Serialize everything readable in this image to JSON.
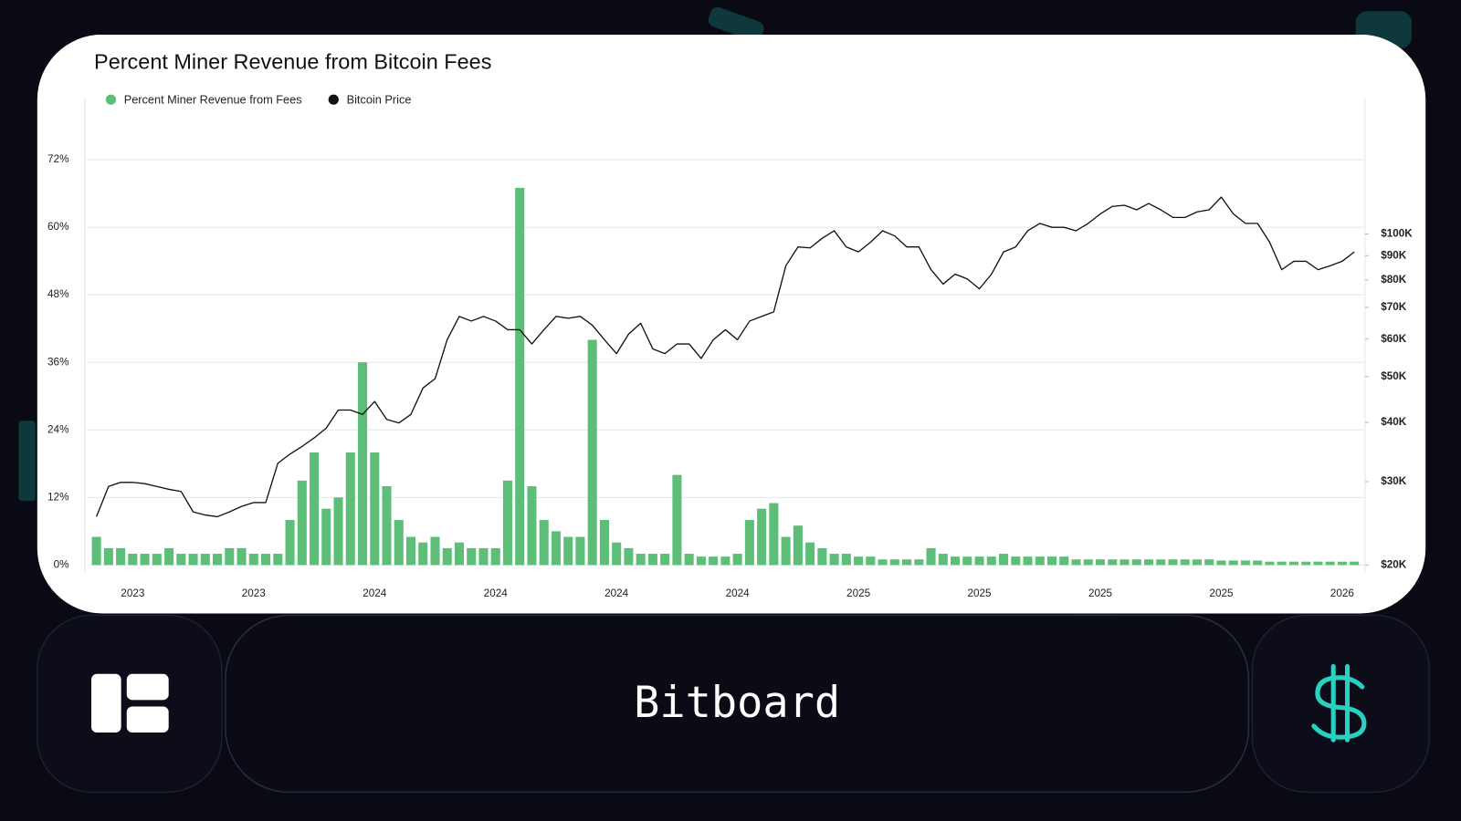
{
  "chart_data": {
    "type": "bar",
    "title": "Percent Miner Revenue from Bitcoin Fees",
    "categories": [
      null,
      null,
      null,
      "2023",
      null,
      null,
      null,
      null,
      null,
      null,
      null,
      null,
      null,
      "2023",
      null,
      null,
      null,
      null,
      null,
      null,
      null,
      null,
      null,
      "2024",
      null,
      null,
      null,
      null,
      null,
      null,
      null,
      null,
      null,
      "2024",
      null,
      null,
      null,
      null,
      null,
      null,
      null,
      null,
      null,
      "2024",
      null,
      null,
      null,
      null,
      null,
      null,
      null,
      null,
      null,
      "2024",
      null,
      null,
      null,
      null,
      null,
      null,
      null,
      null,
      null,
      "2025",
      null,
      null,
      null,
      null,
      null,
      null,
      null,
      null,
      null,
      "2025",
      null,
      null,
      null,
      null,
      null,
      null,
      null,
      null,
      null,
      "2025",
      null,
      null,
      null,
      null,
      null,
      null,
      null,
      null,
      null,
      "2025",
      null,
      null,
      null,
      null,
      null,
      null,
      null,
      null,
      null,
      "2026",
      null
    ],
    "series": [
      {
        "name": "Percent Miner Revenue from Fees",
        "color": "#5dbf77",
        "values": [
          5,
          3,
          3,
          2,
          2,
          2,
          3,
          2,
          2,
          2,
          2,
          3,
          3,
          2,
          2,
          2,
          8,
          15,
          20,
          10,
          12,
          20,
          36,
          20,
          14,
          8,
          5,
          4,
          5,
          3,
          4,
          3,
          3,
          3,
          15,
          67,
          14,
          8,
          6,
          5,
          5,
          40,
          8,
          4,
          3,
          2,
          2,
          2,
          16,
          2,
          1.5,
          1.5,
          1.5,
          2,
          8,
          10,
          11,
          5,
          7,
          4,
          3,
          2,
          2,
          1.5,
          1.5,
          1,
          1,
          1,
          1,
          3,
          2,
          1.5,
          1.5,
          1.5,
          1.5,
          2,
          1.5,
          1.5,
          1.5,
          1.5,
          1.5,
          1,
          1,
          1,
          1,
          1,
          1,
          1,
          1,
          1,
          1,
          1,
          1,
          0.8,
          0.8,
          0.8,
          0.8,
          0.6,
          0.6,
          0.6,
          0.6,
          0.6,
          0.6,
          0.6,
          0.6
        ]
      },
      {
        "name": "Bitcoin Price",
        "color": "#111111",
        "type": "line",
        "axis": "y2",
        "values": [
          25300,
          29300,
          29900,
          29900,
          29700,
          29300,
          28900,
          28600,
          25900,
          25500,
          25300,
          25900,
          26600,
          27100,
          27100,
          32800,
          34300,
          35600,
          37100,
          38900,
          42500,
          42500,
          41600,
          44300,
          40600,
          39900,
          41600,
          47300,
          49500,
          59800,
          67000,
          65500,
          67000,
          65500,
          62800,
          62800,
          58600,
          62800,
          67000,
          66400,
          67000,
          64200,
          59800,
          55900,
          61500,
          64800,
          57200,
          55900,
          58600,
          58600,
          54600,
          59800,
          62800,
          59800,
          65500,
          67000,
          68500,
          85700,
          93900,
          93500,
          97900,
          101600,
          93900,
          91700,
          96100,
          101600,
          99100,
          93900,
          93900,
          84100,
          78400,
          82300,
          80400,
          76600,
          82300,
          91700,
          93900,
          101600,
          105300,
          103300,
          103300,
          101600,
          105300,
          110300,
          114400,
          115000,
          112500,
          116000,
          112500,
          108400,
          108400,
          111400,
          112500,
          119700,
          110300,
          105300,
          105300,
          96100,
          84100,
          87600,
          87600,
          84100,
          85700,
          87600,
          91700
        ]
      }
    ],
    "ylim": [
      0,
      83
    ],
    "yticks": [
      {
        "value": 0,
        "label": "0%"
      },
      {
        "value": 12,
        "label": "12%"
      },
      {
        "value": 24,
        "label": "24%"
      },
      {
        "value": 36,
        "label": "36%"
      },
      {
        "value": 48,
        "label": "48%"
      },
      {
        "value": 60,
        "label": "60%"
      },
      {
        "value": 72,
        "label": "72%"
      }
    ],
    "y2lim": [
      20000,
      194000
    ],
    "y2log": true,
    "y2ticks": [
      {
        "value": 20000,
        "label": "$20K"
      },
      {
        "value": 30000,
        "label": "$30K"
      },
      {
        "value": 40000,
        "label": "$40K"
      },
      {
        "value": 50000,
        "label": "$50K"
      },
      {
        "value": 60000,
        "label": "$60K"
      },
      {
        "value": 70000,
        "label": "$70K"
      },
      {
        "value": 80000,
        "label": "$80K"
      },
      {
        "value": 90000,
        "label": "$90K"
      },
      {
        "value": 100000,
        "label": "$100K"
      }
    ],
    "grid": true,
    "legend": "top-left"
  },
  "app": {
    "name": "Bitboard"
  }
}
